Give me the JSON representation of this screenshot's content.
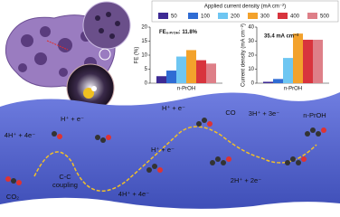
{
  "chart_data": [
    {
      "type": "bar",
      "legend_title": "Applied current density (mA cm⁻²)",
      "ylabel": "FE (%)",
      "annotation": {
        "main": "FE",
        "sub": "n-PrOH",
        "rest": ": 11.8%"
      },
      "categories": [
        "n-PrOH"
      ],
      "series": [
        {
          "name": "50",
          "color": "#3d2a94",
          "values": [
            2.5
          ]
        },
        {
          "name": "100",
          "color": "#2f6cd4",
          "values": [
            4.5
          ]
        },
        {
          "name": "200",
          "color": "#6ec6f2",
          "values": [
            9.5
          ]
        },
        {
          "name": "300",
          "color": "#f3a22c",
          "values": [
            11.8
          ]
        },
        {
          "name": "400",
          "color": "#d8343d",
          "values": [
            8.2
          ]
        },
        {
          "name": "500",
          "color": "#de7f88",
          "values": [
            7.0
          ]
        }
      ],
      "ylim": [
        0,
        20
      ],
      "yticks": [
        0,
        5,
        10,
        15,
        20
      ]
    },
    {
      "type": "bar",
      "ylabel": "Current density (mA cm⁻²)",
      "annotation": "35.4 mA cm⁻²",
      "categories": [
        "n-PrOH"
      ],
      "series": [
        {
          "color": "#3d2a94",
          "values": [
            1.0
          ]
        },
        {
          "color": "#2f6cd4",
          "values": [
            3.0
          ]
        },
        {
          "color": "#6ec6f2",
          "values": [
            18.0
          ]
        },
        {
          "color": "#f3a22c",
          "values": [
            35.4
          ]
        },
        {
          "color": "#d8343d",
          "values": [
            31.0
          ]
        },
        {
          "color": "#de7f88",
          "values": [
            31.0
          ]
        }
      ],
      "ylim": [
        0,
        40
      ],
      "yticks": [
        0,
        10,
        20,
        30,
        40
      ]
    }
  ],
  "diagram": {
    "labels": [
      "4H⁺ + 4e⁻",
      "H⁺ + e⁻",
      "C-C",
      "coupling",
      "CO₂",
      "4H⁺ + 4e⁻",
      "H⁺ + e⁻",
      "H⁺ + e⁻",
      "CO",
      "3H⁺ + 3e⁻",
      "2H⁺ + 2e⁻",
      "n-PrOH"
    ]
  }
}
